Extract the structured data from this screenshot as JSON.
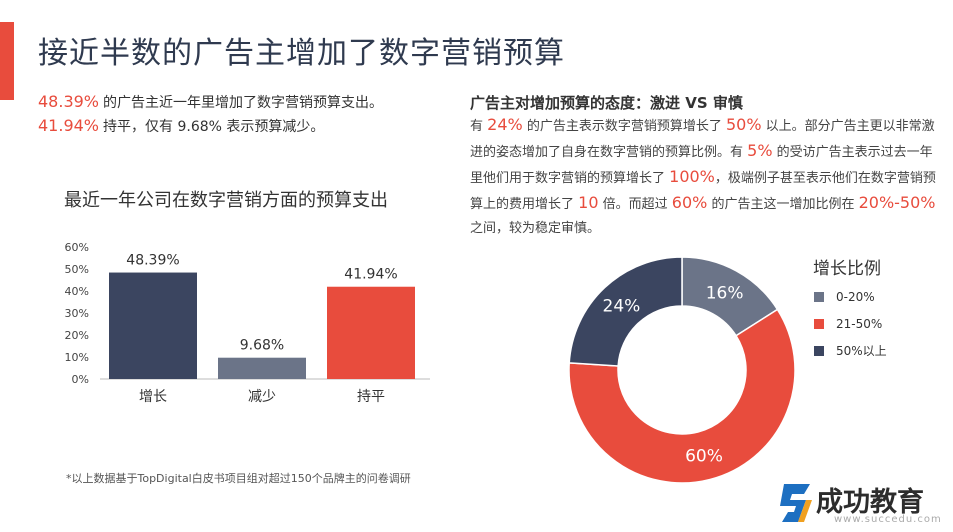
{
  "page": {
    "title": "接近半数的广告主增加了数字营销预算",
    "stat1_value": "48.39%",
    "stat1_text": "的广告主近一年里增加了数字营销预算支出。",
    "stat2_value": "41.94%",
    "stat2_text": "持平，仅有 9.68% 表示预算减少。",
    "right_heading": "广告主对增加预算的态度：激进 VS 审慎",
    "para": {
      "t1": "有 ",
      "h1": "24%",
      "t2": " 的广告主表示数字营销预算增长了 ",
      "h2": "50%",
      "t3": " 以上。部分广告主更以非常激进的姿态增加了自身在数字营销的预算比例。有 ",
      "h3": "5%",
      "t4": " 的受访广告主表示过去一年里他们用于数字营销的预算增长了 ",
      "h4": "100%",
      "t5": "，极端例子甚至表示他们在数字营销预算上的费用增长了 ",
      "h5": "10",
      "t6": " 倍。而超过 ",
      "h6": "60%",
      "t7": " 的广告主这一增加比例在 ",
      "h7": "20%-50%",
      "t8": " 之间，较为稳定审慎。"
    },
    "footnote": "*以上数据基于TopDigital白皮书项目组对超过150个品牌主的问卷调研",
    "logo_text": "成功教育",
    "logo_sub": "www.succedu.com"
  },
  "chart_data": [
    {
      "type": "bar",
      "title": "最近一年公司在数字营销方面的预算支出",
      "categories": [
        "增长",
        "减少",
        "持平"
      ],
      "values": [
        48.39,
        9.68,
        41.94
      ],
      "value_labels": [
        "48.39%",
        "9.68%",
        "41.94%"
      ],
      "colors": [
        "#3b4560",
        "#6b7488",
        "#e84c3d"
      ],
      "ylim": [
        0,
        60
      ],
      "yticks": [
        "0%",
        "10%",
        "20%",
        "30%",
        "40%",
        "50%",
        "60%"
      ],
      "xlabel": "",
      "ylabel": ""
    },
    {
      "type": "pie",
      "title": "增长比例",
      "labels": [
        "0-20%",
        "21-50%",
        "50%以上"
      ],
      "values": [
        16,
        60,
        24
      ],
      "value_labels": [
        "16%",
        "60%",
        "24%"
      ],
      "colors": [
        "#6b7488",
        "#e84c3d",
        "#3b4560"
      ],
      "legend": "right"
    }
  ]
}
